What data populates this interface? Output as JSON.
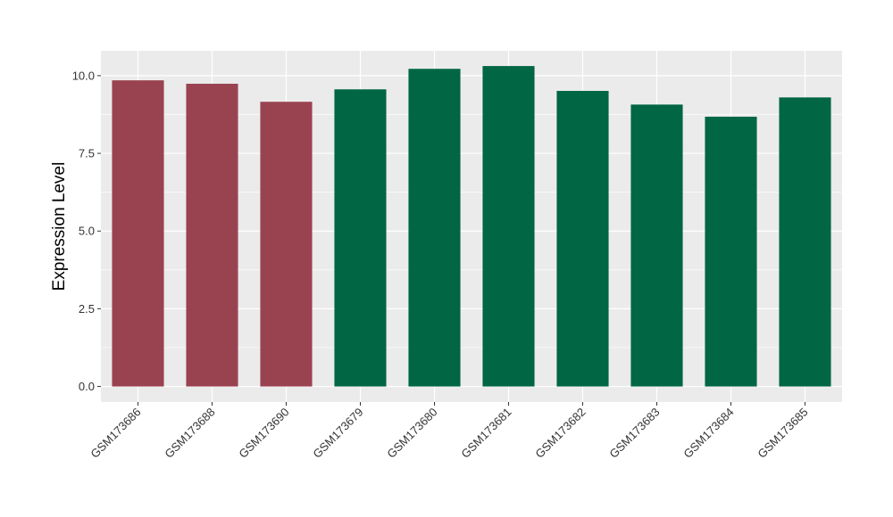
{
  "chart_data": {
    "type": "bar",
    "categories": [
      "GSM173686",
      "GSM173688",
      "GSM173690",
      "GSM173679",
      "GSM173680",
      "GSM173681",
      "GSM173682",
      "GSM173683",
      "GSM173684",
      "GSM173685"
    ],
    "values": [
      9.85,
      9.74,
      9.16,
      9.56,
      10.22,
      10.31,
      9.51,
      9.07,
      8.68,
      9.3
    ],
    "bar_colors": [
      "#9a4350",
      "#9a4350",
      "#9a4350",
      "#006644",
      "#006644",
      "#006644",
      "#006644",
      "#006644",
      "#006644",
      "#006644"
    ],
    "xlabel": "",
    "ylabel": "Expression Level",
    "yticks": [
      "0.0",
      "2.5",
      "5.0",
      "7.5",
      "10.0"
    ],
    "ylim": [
      -0.5,
      10.8
    ],
    "grid": true,
    "panel_background": "#ebebeb",
    "gridline_color": "#ffffff"
  }
}
